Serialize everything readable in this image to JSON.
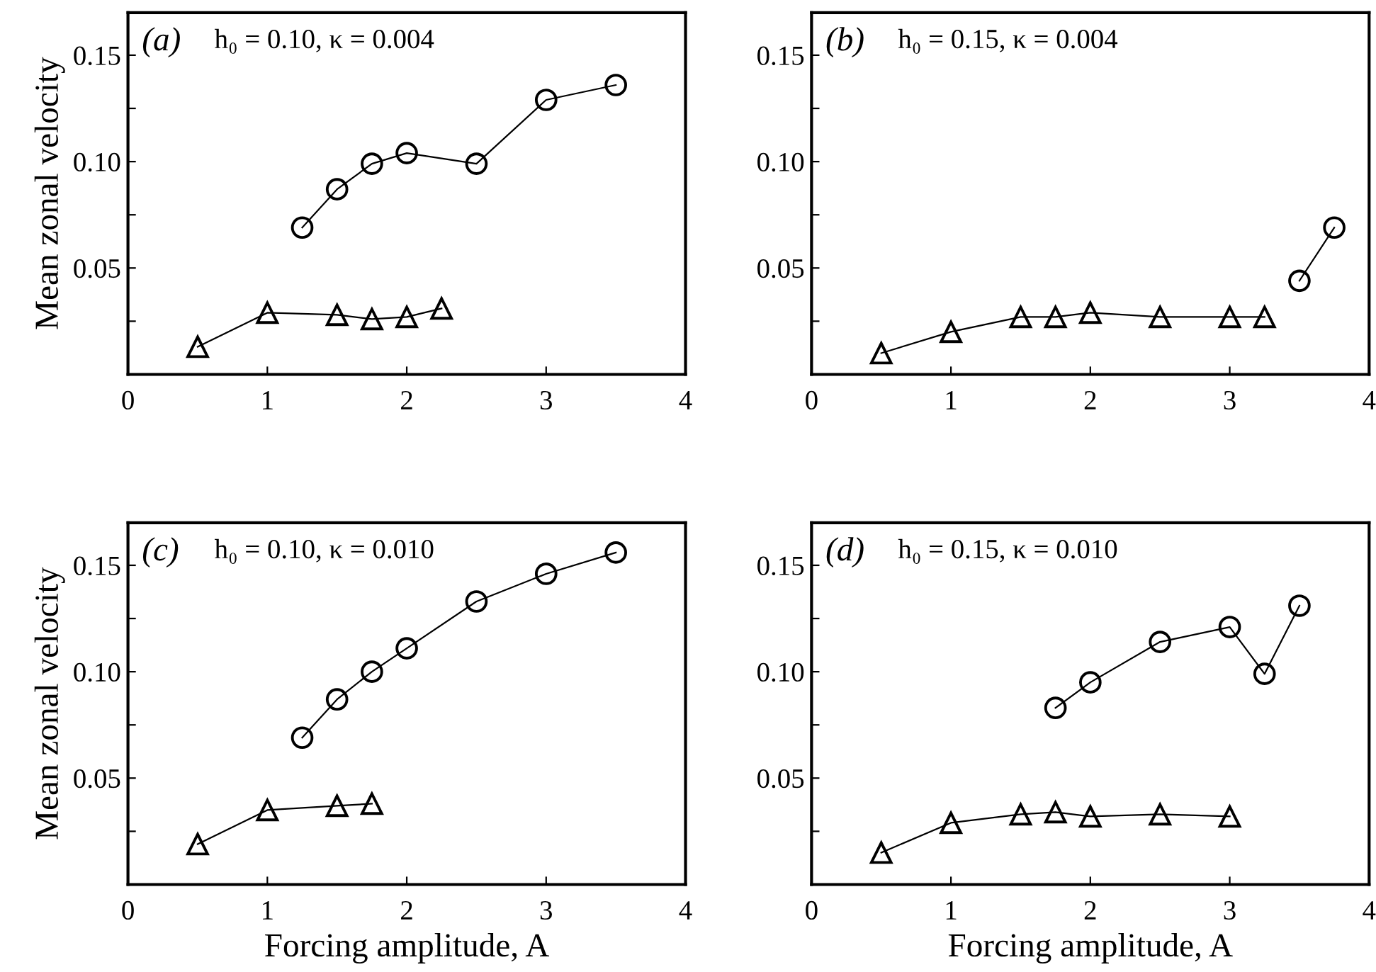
{
  "chart_data": [
    {
      "type": "line",
      "title": "(a)",
      "subtitle": "h₀ = 0.10, κ = 0.004",
      "ylabel": "Mean zonal velocity",
      "xlim": [
        0,
        4
      ],
      "xticks": [
        0,
        1,
        2,
        3,
        4
      ],
      "ylim": [
        0,
        0.17
      ],
      "yticks": [
        {
          "value": 0.025,
          "label": null
        },
        {
          "value": 0.05,
          "label": "0.05"
        },
        {
          "value": 0.075,
          "label": null
        },
        {
          "value": 0.1,
          "label": "0.10"
        },
        {
          "value": 0.125,
          "label": null
        },
        {
          "value": 0.15,
          "label": "0.15"
        }
      ],
      "grid": false,
      "legend": false,
      "line_style": "solid",
      "series": [
        {
          "color": "#000000",
          "marker": "circle",
          "x": [
            1.25,
            1.5,
            1.75,
            2.0,
            2.5,
            3.0,
            3.5
          ],
          "values": [
            0.069,
            0.087,
            0.099,
            0.104,
            0.099,
            0.129,
            0.136
          ]
        },
        {
          "color": "#000000",
          "marker": "triangle",
          "x": [
            0.5,
            1.0,
            1.5,
            1.75,
            2.0,
            2.25
          ],
          "values": [
            0.013,
            0.029,
            0.028,
            0.026,
            0.027,
            0.031
          ]
        }
      ]
    },
    {
      "type": "line",
      "title": "(b)",
      "subtitle": "h₀ = 0.15, κ = 0.004",
      "xlim": [
        0,
        4
      ],
      "xticks": [
        0,
        1,
        2,
        3,
        4
      ],
      "ylim": [
        0,
        0.17
      ],
      "yticks": [
        {
          "value": 0.025,
          "label": null
        },
        {
          "value": 0.05,
          "label": "0.05"
        },
        {
          "value": 0.075,
          "label": null
        },
        {
          "value": 0.1,
          "label": "0.10"
        },
        {
          "value": 0.125,
          "label": null
        },
        {
          "value": 0.15,
          "label": "0.15"
        }
      ],
      "grid": false,
      "legend": false,
      "line_style": "solid",
      "series": [
        {
          "color": "#000000",
          "marker": "triangle",
          "x": [
            0.5,
            1.0,
            1.5,
            1.75,
            2.0,
            2.5,
            3.0,
            3.25
          ],
          "values": [
            0.01,
            0.02,
            0.027,
            0.027,
            0.029,
            0.027,
            0.027,
            0.027
          ]
        },
        {
          "color": "#000000",
          "marker": "circle",
          "x": [
            3.5,
            3.75
          ],
          "values": [
            0.044,
            0.069
          ]
        }
      ]
    },
    {
      "type": "line",
      "title": "(c)",
      "subtitle": "h₀ = 0.10, κ = 0.010",
      "xlabel": "Forcing amplitude, A",
      "ylabel": "Mean zonal velocity",
      "xlim": [
        0,
        4
      ],
      "xticks": [
        0,
        1,
        2,
        3,
        4
      ],
      "ylim": [
        0,
        0.17
      ],
      "yticks": [
        {
          "value": 0.025,
          "label": null
        },
        {
          "value": 0.05,
          "label": "0.05"
        },
        {
          "value": 0.075,
          "label": null
        },
        {
          "value": 0.1,
          "label": "0.10"
        },
        {
          "value": 0.125,
          "label": null
        },
        {
          "value": 0.15,
          "label": "0.15"
        }
      ],
      "grid": false,
      "legend": false,
      "line_style": "solid",
      "series": [
        {
          "color": "#000000",
          "marker": "circle",
          "x": [
            1.25,
            1.5,
            1.75,
            2.0,
            2.5,
            3.0,
            3.5
          ],
          "values": [
            0.069,
            0.087,
            0.1,
            0.111,
            0.133,
            0.146,
            0.156
          ]
        },
        {
          "color": "#000000",
          "marker": "triangle",
          "x": [
            0.5,
            1.0,
            1.5,
            1.75
          ],
          "values": [
            0.019,
            0.035,
            0.037,
            0.038
          ]
        }
      ]
    },
    {
      "type": "line",
      "title": "(d)",
      "subtitle": "h₀ = 0.15, κ = 0.010",
      "xlabel": "Forcing amplitude, A",
      "xlim": [
        0,
        4
      ],
      "xticks": [
        0,
        1,
        2,
        3,
        4
      ],
      "ylim": [
        0,
        0.17
      ],
      "yticks": [
        {
          "value": 0.025,
          "label": null
        },
        {
          "value": 0.05,
          "label": "0.05"
        },
        {
          "value": 0.075,
          "label": null
        },
        {
          "value": 0.1,
          "label": "0.10"
        },
        {
          "value": 0.125,
          "label": null
        },
        {
          "value": 0.15,
          "label": "0.15"
        }
      ],
      "grid": false,
      "legend": false,
      "line_style": "solid",
      "series": [
        {
          "color": "#000000",
          "marker": "circle",
          "x": [
            1.75,
            2.0,
            2.5,
            3.0,
            3.25,
            3.5
          ],
          "values": [
            0.083,
            0.095,
            0.114,
            0.121,
            0.099,
            0.131
          ]
        },
        {
          "color": "#000000",
          "marker": "triangle",
          "x": [
            0.5,
            1.0,
            1.5,
            1.75,
            2.0,
            2.5,
            3.0
          ],
          "values": [
            0.015,
            0.029,
            0.033,
            0.034,
            0.032,
            0.033,
            0.032
          ]
        }
      ]
    }
  ]
}
